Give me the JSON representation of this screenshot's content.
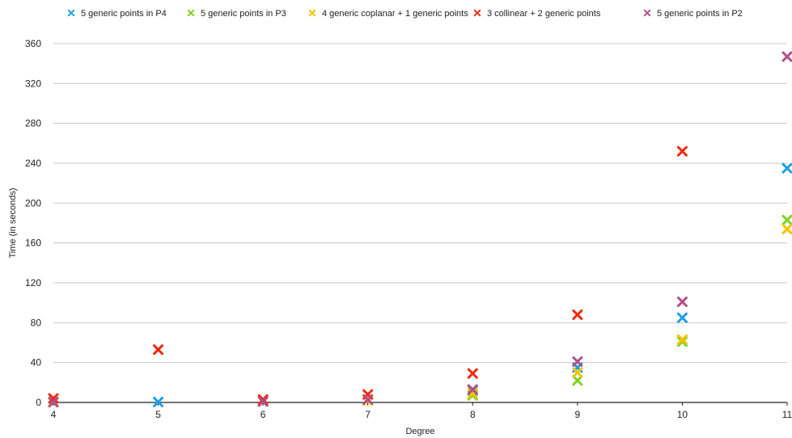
{
  "chart_data": {
    "type": "scatter",
    "xlabel": "Degree",
    "ylabel": "Time (in seconds)",
    "x": [
      4,
      5,
      6,
      7,
      8,
      9,
      10,
      11
    ],
    "xlim": [
      4,
      11
    ],
    "ylim": [
      0,
      360
    ],
    "yticks": [
      0,
      40,
      80,
      120,
      160,
      200,
      240,
      280,
      320,
      360
    ],
    "grid": "horizontal",
    "legend_position": "top",
    "series": [
      {
        "name": "5 generic points in P4",
        "color": "#1BA1E2",
        "points": [
          [
            4,
            0.5
          ],
          [
            5,
            0.5
          ],
          [
            6,
            1
          ],
          [
            7,
            3
          ],
          [
            8,
            12
          ],
          [
            9,
            35
          ],
          [
            10,
            85
          ],
          [
            11,
            235
          ]
        ]
      },
      {
        "name": "5 generic points in P3",
        "color": "#7ED321",
        "points": [
          [
            4,
            0.3
          ],
          [
            6,
            1
          ],
          [
            7,
            2
          ],
          [
            8,
            7
          ],
          [
            9,
            22
          ],
          [
            10,
            61
          ],
          [
            11,
            183
          ]
        ]
      },
      {
        "name": "4 generic coplanar + 1 generic points",
        "color": "#F8C200",
        "points": [
          [
            4,
            0.3
          ],
          [
            6,
            1
          ],
          [
            7,
            2
          ],
          [
            8,
            9
          ],
          [
            9,
            30
          ],
          [
            10,
            63
          ],
          [
            11,
            174
          ]
        ]
      },
      {
        "name": "3 collinear + 2 generic points",
        "color": "#F0290F",
        "points": [
          [
            4,
            4
          ],
          [
            5,
            53
          ],
          [
            6,
            3
          ],
          [
            7,
            8
          ],
          [
            8,
            29
          ],
          [
            9,
            88
          ],
          [
            10,
            252
          ]
        ]
      },
      {
        "name": "5 generic points in P2",
        "color": "#B34F86",
        "points": [
          [
            4,
            0.3
          ],
          [
            6,
            1
          ],
          [
            7,
            3
          ],
          [
            8,
            13
          ],
          [
            9,
            41
          ],
          [
            10,
            101
          ],
          [
            11,
            347
          ]
        ]
      }
    ]
  }
}
